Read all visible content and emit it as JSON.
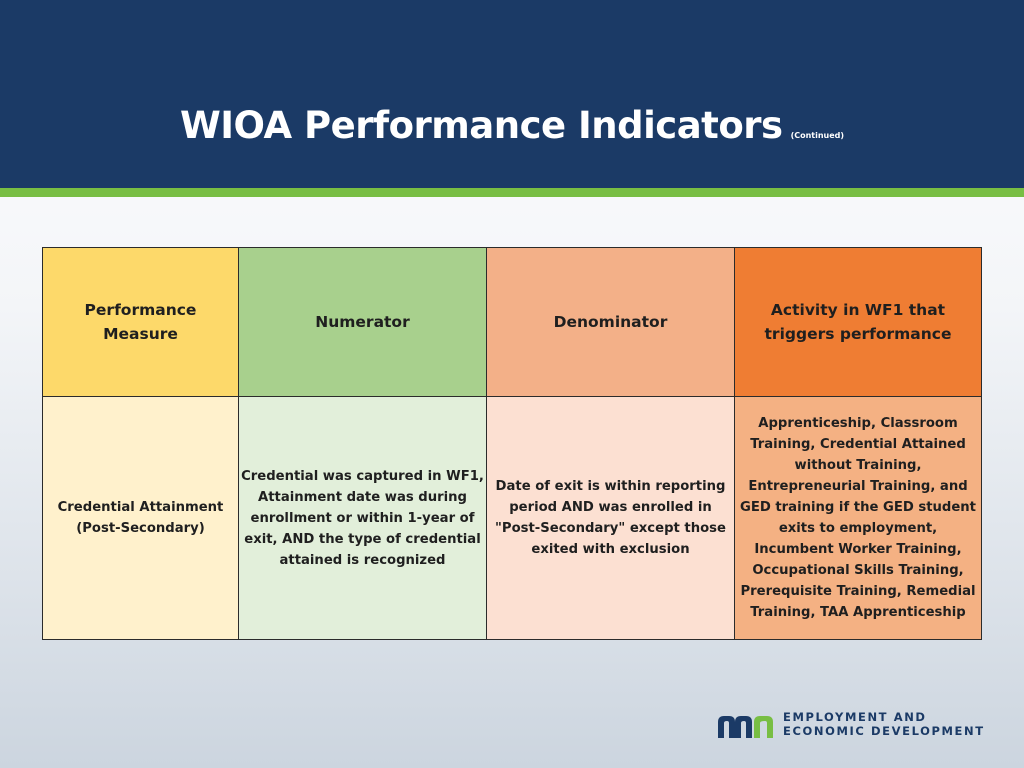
{
  "slide": {
    "title": "WIOA Performance Indicators",
    "subtitle": "(Continued)"
  },
  "table": {
    "headers": [
      "Performance Measure",
      "Numerator",
      "Denominator",
      "Activity in WF1 that triggers performance"
    ],
    "rows": [
      {
        "measure": "Credential Attainment (Post-Secondary)",
        "numerator": "Credential was captured in WF1, Attainment date was during enrollment or within 1-year of exit, AND the type of credential attained is recognized",
        "denominator": "Date of exit is within reporting period AND was enrolled in \"Post-Secondary\" except those exited with exclusion",
        "activity": "Apprenticeship, Classroom Training, Credential Attained without Training, Entrepreneurial Training, and GED training if the GED student exits to employment, Incumbent Worker Training, Occupational Skills Training, Prerequisite Training, Remedial Training, TAA Apprenticeship"
      }
    ]
  },
  "logo": {
    "line1": "EMPLOYMENT AND",
    "line2": "ECONOMIC DEVELOPMENT"
  },
  "colors": {
    "header_bg": "#1b3a66",
    "accent_stripe": "#78be43",
    "measure_header": "#fdd96a",
    "numerator_header": "#a8d08d",
    "denominator_header": "#f3b088",
    "activity_header": "#ef7d33",
    "logo_green": "#78be43"
  }
}
